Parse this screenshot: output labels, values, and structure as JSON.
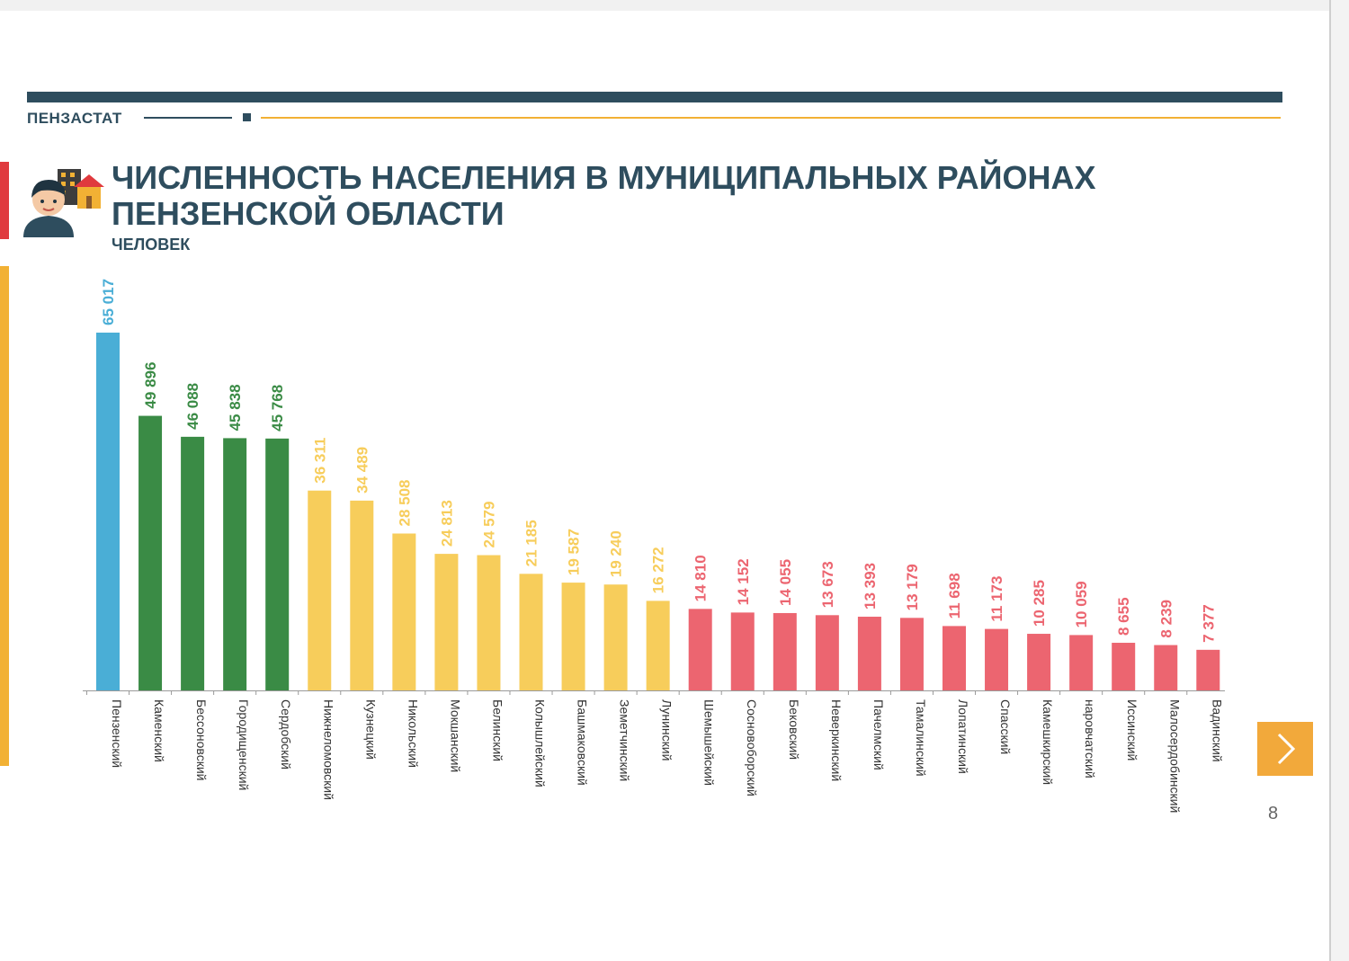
{
  "header": {
    "brand": "ПЕНЗАСТАТ",
    "title": "ЧИСЛЕННОСТЬ НАСЕЛЕНИЯ В МУНИЦИПАЛЬНЫХ РАЙОНАХ ПЕНЗЕНСКОЙ ОБЛАСТИ",
    "subtitle": "ЧЕЛОВЕК"
  },
  "footer": {
    "page_number": "8"
  },
  "colors": {
    "dark_blue": "#2e4d5e",
    "blue": "#4aaed6",
    "green": "#3a8b45",
    "yellow": "#f7cd5b",
    "red": "#ec6570",
    "orange": "#f2a93b"
  },
  "icons": {
    "header_icon": "person-with-buildings-icon",
    "next": "chevron-right-icon"
  },
  "chart_data": {
    "type": "bar",
    "title": "ЧИСЛЕННОСТЬ НАСЕЛЕНИЯ В МУНИЦИПАЛЬНЫХ РАЙОНАХ ПЕНЗЕНСКОЙ ОБЛАСТИ",
    "ylabel": "ЧЕЛОВЕК",
    "ylim": [
      0,
      65017
    ],
    "grid": false,
    "legend": "none",
    "categories": [
      "Пензенский",
      "Каменский",
      "Бессоновский",
      "Городищенский",
      "Сердобский",
      "Нижнеломовский",
      "Кузнецкий",
      "Никольский",
      "Мокшанский",
      "Белинский",
      "Колышлейский",
      "Башмаковский",
      "Земетчинский",
      "Лунинский",
      "Шемышейский",
      "Сосновоборский",
      "Бековский",
      "Неверкинский",
      "Пачелмский",
      "Тамалинский",
      "Лопатинский",
      "Спасский",
      "Камешкирский",
      "наровчатский",
      "Иссинский",
      "Малосердобинский",
      "Вадинский"
    ],
    "values": [
      65017,
      49896,
      46088,
      45838,
      45768,
      36311,
      34489,
      28508,
      24813,
      24579,
      21185,
      19587,
      19240,
      16272,
      14810,
      14152,
      14055,
      13673,
      13393,
      13179,
      11698,
      11173,
      10285,
      10059,
      8655,
      8239,
      7377
    ],
    "labels": [
      "65 017",
      "49 896",
      "46 088",
      "45 838",
      "45 768",
      "36 311",
      "34 489",
      "28 508",
      "24 813",
      "24 579",
      "21 185",
      "19 587",
      "19 240",
      "16 272",
      "14 810",
      "14 152",
      "14 055",
      "13 673",
      "13 393",
      "13 179",
      "11 698",
      "11 173",
      "10 285",
      "10 059",
      "8 655",
      "8 239",
      "7 377"
    ],
    "bar_color_groups": [
      "blue",
      "green",
      "green",
      "green",
      "green",
      "yellow",
      "yellow",
      "yellow",
      "yellow",
      "yellow",
      "yellow",
      "yellow",
      "yellow",
      "yellow",
      "red",
      "red",
      "red",
      "red",
      "red",
      "red",
      "red",
      "red",
      "red",
      "red",
      "red",
      "red",
      "red"
    ]
  }
}
